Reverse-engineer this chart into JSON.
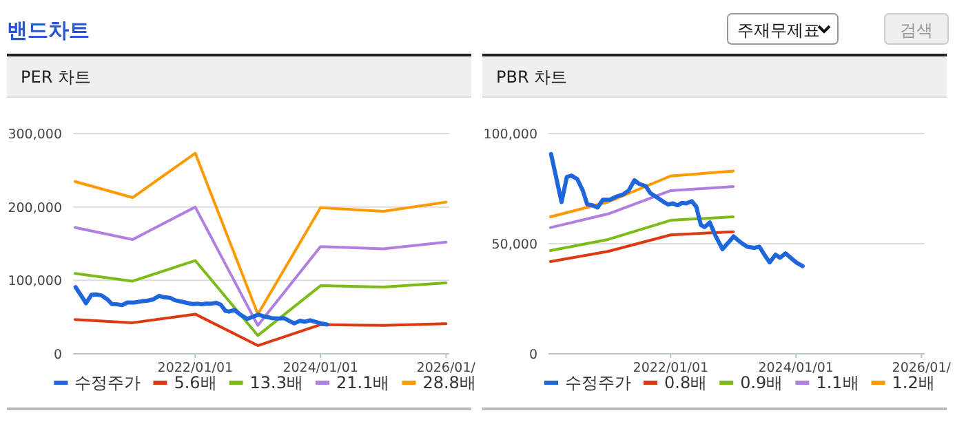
{
  "chart_data": [
    {
      "type": "other",
      "title": "밴드차트",
      "annotations": [
        "주재무제표",
        "검색"
      ]
    },
    {
      "type": "line",
      "title": "PER 차트",
      "xlim": [
        "2020-01-20",
        "2026-01-20"
      ],
      "ylim": [
        0,
        300000
      ],
      "xticks": [
        {
          "value": "2022-01-01",
          "label": "2022/01/01"
        },
        {
          "value": "2024-01-01",
          "label": "2024/01/01"
        },
        {
          "value": "2026-01-01",
          "label": "2026/01/"
        }
      ],
      "yticks": [
        {
          "value": 0,
          "label": "0"
        },
        {
          "value": 100000,
          "label": "100,000"
        },
        {
          "value": 200000,
          "label": "200,000"
        },
        {
          "value": 300000,
          "label": "300,000"
        }
      ],
      "grid": "y",
      "legend": "bottom",
      "marker": "none",
      "line_style": "solid",
      "series": [
        {
          "name": "수정주가",
          "color": "#1f66dd",
          "x": [
            "2020-02-04",
            "2020-03-07",
            "2020-04-05",
            "2020-05-06",
            "2020-06-02",
            "2020-07-06",
            "2020-08-07",
            "2020-09-02",
            "2020-10-03",
            "2020-11-01",
            "2020-12-02",
            "2021-01-11",
            "2021-02-20",
            "2021-03-31",
            "2021-05-01",
            "2021-06-04",
            "2021-06-30",
            "2021-08-09",
            "2021-09-04",
            "2021-10-13",
            "2021-11-22",
            "2021-12-18",
            "2022-01-14",
            "2022-02-09",
            "2022-03-07",
            "2022-04-02",
            "2022-05-04",
            "2022-05-30",
            "2022-06-26",
            "2022-07-17",
            "2022-08-17",
            "2022-09-21",
            "2022-10-30",
            "2022-11-30",
            "2023-01-03",
            "2023-02-12",
            "2023-03-23",
            "2023-05-01",
            "2023-06-02",
            "2023-07-06",
            "2023-08-01",
            "2023-09-04",
            "2023-09-30",
            "2023-11-01",
            "2023-12-10",
            "2024-01-06",
            "2024-02-09"
          ],
          "values": [
            90700,
            79300,
            68900,
            80300,
            80900,
            79300,
            74100,
            67800,
            67400,
            66400,
            69900,
            69900,
            71400,
            72400,
            74100,
            78800,
            77200,
            76100,
            73000,
            71000,
            68900,
            67800,
            68300,
            67400,
            68500,
            68300,
            69300,
            66800,
            58500,
            57500,
            59600,
            53300,
            47500,
            50200,
            53300,
            50600,
            48600,
            48100,
            48600,
            44400,
            41500,
            45000,
            43600,
            45600,
            43000,
            41300,
            39800
          ]
        },
        {
          "name": "5.6배",
          "color": "#dc3912",
          "x": [
            "2020-02-01",
            "2021-01-01",
            "2022-01-01",
            "2023-01-01",
            "2024-01-01",
            "2025-01-01",
            "2026-01-01"
          ],
          "values": [
            46700,
            42300,
            54000,
            11200,
            39800,
            38600,
            41000
          ]
        },
        {
          "name": "13.3배",
          "color": "#7cbb1a",
          "x": [
            "2020-02-01",
            "2021-01-01",
            "2022-01-01",
            "2023-01-01",
            "2024-01-01",
            "2025-01-01",
            "2026-01-01"
          ],
          "values": [
            109500,
            99000,
            127000,
            24900,
            92700,
            90900,
            96500
          ]
        },
        {
          "name": "21.1배",
          "color": "#b07fe0",
          "x": [
            "2020-02-01",
            "2021-01-01",
            "2022-01-01",
            "2023-01-01",
            "2024-01-01",
            "2025-01-01",
            "2026-01-01"
          ],
          "values": [
            172000,
            155600,
            199800,
            38600,
            146000,
            143000,
            152000
          ]
        },
        {
          "name": "28.8배",
          "color": "#ff9900",
          "x": [
            "2020-02-01",
            "2021-01-01",
            "2022-01-01",
            "2023-01-01",
            "2024-01-01",
            "2025-01-01",
            "2026-01-01"
          ],
          "values": [
            234600,
            212800,
            273200,
            54000,
            199000,
            194000,
            206600
          ]
        }
      ]
    },
    {
      "type": "line",
      "title": "PBR 차트",
      "xlim": [
        "2020-01-20",
        "2026-01-20"
      ],
      "ylim": [
        0,
        100000
      ],
      "xticks": [
        {
          "value": "2022-01-01",
          "label": "2022/01/01"
        },
        {
          "value": "2024-01-01",
          "label": "2024/01/01"
        },
        {
          "value": "2026-01-01",
          "label": "2026/01/"
        }
      ],
      "yticks": [
        {
          "value": 0,
          "label": "0"
        },
        {
          "value": 50000,
          "label": "50,000"
        },
        {
          "value": 100000,
          "label": "100,000"
        }
      ],
      "grid": "y",
      "legend": "bottom",
      "marker": "none",
      "line_style": "solid",
      "series": [
        {
          "name": "수정주가",
          "color": "#1f66dd",
          "x": [
            "2020-02-04",
            "2020-03-07",
            "2020-04-05",
            "2020-05-06",
            "2020-06-02",
            "2020-07-06",
            "2020-08-07",
            "2020-09-02",
            "2020-10-03",
            "2020-11-01",
            "2020-12-02",
            "2021-01-11",
            "2021-02-20",
            "2021-03-31",
            "2021-05-01",
            "2021-06-04",
            "2021-06-30",
            "2021-08-09",
            "2021-09-04",
            "2021-10-13",
            "2021-11-22",
            "2021-12-18",
            "2022-01-14",
            "2022-02-09",
            "2022-03-07",
            "2022-04-02",
            "2022-05-04",
            "2022-05-30",
            "2022-06-26",
            "2022-07-17",
            "2022-08-17",
            "2022-09-21",
            "2022-10-30",
            "2022-11-30",
            "2023-01-03",
            "2023-02-12",
            "2023-03-23",
            "2023-05-01",
            "2023-06-02",
            "2023-07-06",
            "2023-08-01",
            "2023-09-04",
            "2023-09-30",
            "2023-11-01",
            "2023-12-10",
            "2024-01-06",
            "2024-02-09"
          ],
          "values": [
            90700,
            79300,
            68900,
            80300,
            80900,
            79300,
            74100,
            67800,
            67400,
            66400,
            69900,
            69900,
            71400,
            72400,
            74100,
            78800,
            77200,
            76100,
            73000,
            71000,
            68900,
            67800,
            68300,
            67400,
            68500,
            68300,
            69300,
            66800,
            58500,
            57500,
            59600,
            53300,
            47500,
            50200,
            53300,
            50600,
            48600,
            48100,
            48600,
            44400,
            41500,
            45000,
            43600,
            45600,
            43000,
            41300,
            39800
          ]
        },
        {
          "name": "0.8배",
          "color": "#dc3912",
          "x": [
            "2020-02-01",
            "2021-01-01",
            "2022-01-01",
            "2023-01-01"
          ],
          "values": [
            41900,
            46500,
            54000,
            55400
          ]
        },
        {
          "name": "0.9배",
          "color": "#7cbb1a",
          "x": [
            "2020-02-01",
            "2021-01-01",
            "2022-01-01",
            "2023-01-01"
          ],
          "values": [
            46900,
            51900,
            60600,
            62200
          ]
        },
        {
          "name": "1.1배",
          "color": "#b07fe0",
          "x": [
            "2020-02-01",
            "2021-01-01",
            "2022-01-01",
            "2023-01-01"
          ],
          "values": [
            57300,
            63500,
            74100,
            75900
          ]
        },
        {
          "name": "1.2배",
          "color": "#ff9900",
          "x": [
            "2020-02-01",
            "2021-01-01",
            "2022-01-01",
            "2023-01-01"
          ],
          "values": [
            62200,
            68900,
            80700,
            83000
          ]
        }
      ]
    }
  ]
}
